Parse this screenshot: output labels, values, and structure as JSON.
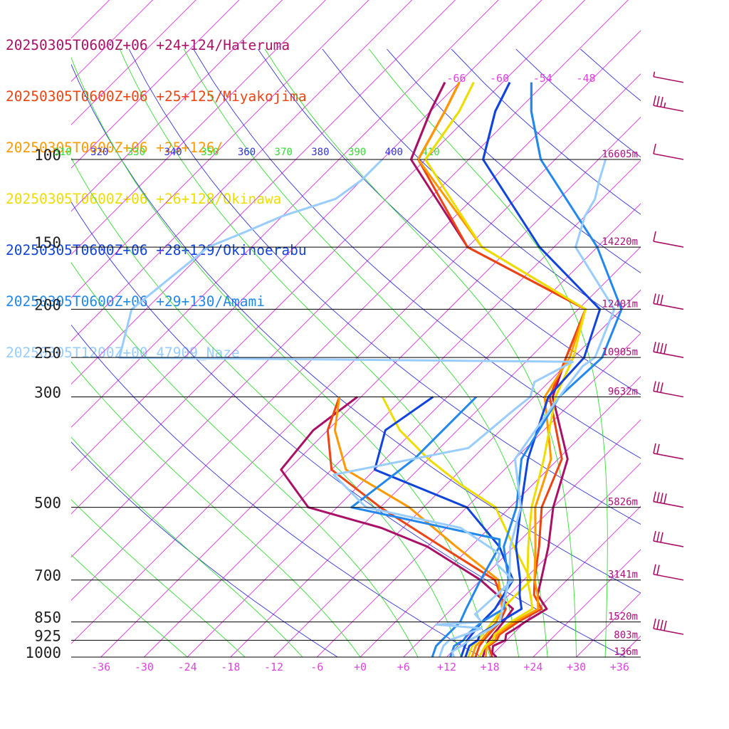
{
  "legend": [
    {
      "text": "20250305T0600Z+06 +24+124/Hateruma",
      "color": "#aa1166"
    },
    {
      "text": "20250305T0600Z+06 +25+125/Miyakojima",
      "color": "#ee4411"
    },
    {
      "text": "20250305T0600Z+06 +25+126/",
      "color": "#ff9900"
    },
    {
      "text": "20250305T0600Z+06 +26+128/Okinawa",
      "color": "#eedd00"
    },
    {
      "text": "20250305T0600Z+06 +28+129/Okinoerabu",
      "color": "#1144dd"
    },
    {
      "text": "20250305T0600Z+06 +29+130/Amami",
      "color": "#2288ee"
    },
    {
      "text": "20250305T1200Z+00 47909_Naze",
      "color": "#99ccff"
    }
  ],
  "colors": {
    "isobar": "#000000",
    "isotherm": "#dd33dd",
    "dry_adiabat": "#3333dd",
    "moist_adiabat": "#33dd33",
    "wind_barb": "#aa1166"
  },
  "chart_data": {
    "type": "skew-t log-p",
    "pressure_levels": [
      {
        "p": 100,
        "label": "100",
        "height": "16605m"
      },
      {
        "p": 150,
        "label": "150",
        "height": "14220m"
      },
      {
        "p": 200,
        "label": "200",
        "height": "12401m"
      },
      {
        "p": 250,
        "label": "250",
        "height": "10905m"
      },
      {
        "p": 300,
        "label": "300",
        "height": "9632m"
      },
      {
        "p": 500,
        "label": "500",
        "height": "5826m"
      },
      {
        "p": 700,
        "label": "700",
        "height": "3141m"
      },
      {
        "p": 850,
        "label": "850",
        "height": "1520m"
      },
      {
        "p": 925,
        "label": "925",
        "height": "803m"
      },
      {
        "p": 1000,
        "label": "1000",
        "height": "136m"
      }
    ],
    "x_ticks": [
      {
        "t": -36,
        "label": "-36"
      },
      {
        "t": -30,
        "label": "-30"
      },
      {
        "t": -24,
        "label": "-24"
      },
      {
        "t": -18,
        "label": "-18"
      },
      {
        "t": -12,
        "label": "-12"
      },
      {
        "t": -6,
        "label": "-6"
      },
      {
        "t": 0,
        "label": "+0"
      },
      {
        "t": 6,
        "label": "+6"
      },
      {
        "t": 12,
        "label": "+12"
      },
      {
        "t": 18,
        "label": "+18"
      },
      {
        "t": 24,
        "label": "+24"
      },
      {
        "t": 30,
        "label": "+30"
      },
      {
        "t": 36,
        "label": "+36"
      }
    ],
    "upper_isotherm_labels": [
      {
        "t": -66,
        "label": "-66"
      },
      {
        "t": -60,
        "label": "-60"
      },
      {
        "t": -54,
        "label": "-54"
      },
      {
        "t": -48,
        "label": "-48"
      }
    ],
    "theta_labels": [
      {
        "label": "310",
        "color": "#33dd33"
      },
      {
        "label": "320",
        "color": "#3333dd"
      },
      {
        "label": "330",
        "color": "#33dd33"
      },
      {
        "label": "340",
        "color": "#3333dd"
      },
      {
        "label": "350",
        "color": "#33dd33"
      },
      {
        "label": "360",
        "color": "#3333dd"
      },
      {
        "label": "370",
        "color": "#33dd33"
      },
      {
        "label": "380",
        "color": "#3333dd"
      },
      {
        "label": "390",
        "color": "#33dd33"
      },
      {
        "label": "400",
        "color": "#3333dd"
      },
      {
        "label": "410",
        "color": "#33dd33"
      }
    ],
    "series": [
      {
        "name": "Hateruma",
        "color": "#aa1166",
        "temp": [
          [
            1000,
            18.9
          ],
          [
            980,
            17.7
          ],
          [
            950,
            16.9
          ],
          [
            925,
            17.8
          ],
          [
            900,
            17.1
          ],
          [
            875,
            17.6
          ],
          [
            850,
            18.0
          ],
          [
            800,
            19.2
          ],
          [
            750,
            16.0
          ],
          [
            700,
            14.4
          ],
          [
            600,
            10.8
          ],
          [
            500,
            6.0
          ],
          [
            400,
            1.3
          ],
          [
            300,
            -9.4
          ],
          [
            250,
            -13.0
          ],
          [
            200,
            -17.0
          ],
          [
            150,
            -42.0
          ],
          [
            100,
            -62.0
          ],
          [
            80,
            -66.0
          ],
          [
            70,
            -68.0
          ]
        ],
        "dew": [
          [
            1000,
            17.0
          ],
          [
            950,
            16.0
          ],
          [
            925,
            15.5
          ],
          [
            850,
            15.0
          ],
          [
            800,
            14.5
          ],
          [
            700,
            6.0
          ],
          [
            600,
            -6.0
          ],
          [
            550,
            -15.0
          ],
          [
            500,
            -28.0
          ],
          [
            420,
            -37.0
          ],
          [
            350,
            -38.0
          ],
          [
            300,
            -36.5
          ]
        ]
      },
      {
        "name": "Miyakojima",
        "color": "#ee4411",
        "temp": [
          [
            1000,
            18.3
          ],
          [
            950,
            16.3
          ],
          [
            925,
            16.6
          ],
          [
            900,
            16.2
          ],
          [
            850,
            17.0
          ],
          [
            800,
            18.5
          ],
          [
            750,
            15.5
          ],
          [
            700,
            13.5
          ],
          [
            600,
            9.5
          ],
          [
            500,
            4.4
          ],
          [
            400,
            0.5
          ],
          [
            300,
            -9.8
          ],
          [
            250,
            -13.0
          ],
          [
            200,
            -17.0
          ],
          [
            150,
            -42.0
          ],
          [
            100,
            -61.0
          ],
          [
            80,
            -64.0
          ],
          [
            70,
            -66.0
          ]
        ],
        "dew": [
          [
            1000,
            16.0
          ],
          [
            950,
            15.0
          ],
          [
            925,
            14.8
          ],
          [
            850,
            14.5
          ],
          [
            800,
            13.5
          ],
          [
            700,
            8.0
          ],
          [
            600,
            -4.0
          ],
          [
            500,
            -18.0
          ],
          [
            420,
            -30.0
          ],
          [
            350,
            -36.0
          ],
          [
            300,
            -39.0
          ]
        ]
      },
      {
        "name": "",
        "color": "#ff9900",
        "temp": [
          [
            1000,
            17.4
          ],
          [
            950,
            16.0
          ],
          [
            925,
            16.4
          ],
          [
            900,
            15.8
          ],
          [
            850,
            16.5
          ],
          [
            800,
            18.0
          ],
          [
            750,
            16.0
          ],
          [
            700,
            13.5
          ],
          [
            600,
            9.0
          ],
          [
            500,
            3.5
          ],
          [
            400,
            -1.0
          ],
          [
            300,
            -10.5
          ],
          [
            250,
            -12.5
          ],
          [
            200,
            -17.0
          ],
          [
            150,
            -40.0
          ],
          [
            100,
            -61.0
          ],
          [
            80,
            -64.0
          ],
          [
            70,
            -66.0
          ]
        ],
        "dew": [
          [
            1000,
            15.5
          ],
          [
            950,
            14.5
          ],
          [
            925,
            14.5
          ],
          [
            850,
            14.0
          ],
          [
            800,
            13.0
          ],
          [
            700,
            8.5
          ],
          [
            600,
            -2.0
          ],
          [
            500,
            -14.0
          ],
          [
            420,
            -28.0
          ],
          [
            350,
            -35.0
          ],
          [
            300,
            -39.0
          ]
        ]
      },
      {
        "name": "Okinawa",
        "color": "#eedd00",
        "temp": [
          [
            1000,
            16.5
          ],
          [
            950,
            15.8
          ],
          [
            925,
            16.0
          ],
          [
            900,
            15.5
          ],
          [
            850,
            16.0
          ],
          [
            800,
            17.2
          ],
          [
            750,
            15.0
          ],
          [
            700,
            12.5
          ],
          [
            600,
            8.0
          ],
          [
            500,
            3.0
          ],
          [
            400,
            -2.0
          ],
          [
            300,
            -9.0
          ],
          [
            250,
            -12.0
          ],
          [
            200,
            -17.0
          ],
          [
            150,
            -40.0
          ],
          [
            100,
            -60.0
          ],
          [
            80,
            -62.0
          ],
          [
            70,
            -64.0
          ]
        ],
        "dew": [
          [
            1000,
            15.0
          ],
          [
            950,
            14.0
          ],
          [
            925,
            14.0
          ],
          [
            850,
            13.5
          ],
          [
            800,
            13.0
          ],
          [
            700,
            13.0
          ],
          [
            600,
            6.0
          ],
          [
            500,
            -2.0
          ],
          [
            450,
            -10.0
          ],
          [
            400,
            -18.0
          ],
          [
            350,
            -26.0
          ],
          [
            300,
            -33.0
          ]
        ]
      },
      {
        "name": "Okinoerabu",
        "color": "#1144dd",
        "temp": [
          [
            1000,
            14.6
          ],
          [
            950,
            13.6
          ],
          [
            925,
            14.0
          ],
          [
            900,
            13.4
          ],
          [
            850,
            14.5
          ],
          [
            800,
            15.7
          ],
          [
            750,
            13.5
          ],
          [
            700,
            11.5
          ],
          [
            600,
            6.3
          ],
          [
            500,
            1.5
          ],
          [
            400,
            -4.2
          ],
          [
            300,
            -10.0
          ],
          [
            250,
            -10.5
          ],
          [
            200,
            -15.0
          ],
          [
            150,
            -32.0
          ],
          [
            100,
            -52.0
          ],
          [
            80,
            -57.0
          ],
          [
            70,
            -59.0
          ]
        ],
        "dew": [
          [
            1000,
            14.0
          ],
          [
            950,
            13.0
          ],
          [
            925,
            12.5
          ],
          [
            850,
            12.0
          ],
          [
            800,
            12.0
          ],
          [
            700,
            10.5
          ],
          [
            600,
            4.0
          ],
          [
            500,
            -6.0
          ],
          [
            420,
            -24.0
          ],
          [
            350,
            -28.0
          ],
          [
            300,
            -26.0
          ]
        ]
      },
      {
        "name": "Amami",
        "color": "#2288ee",
        "temp": [
          [
            1000,
            12.5
          ],
          [
            950,
            11.5
          ],
          [
            925,
            12.0
          ],
          [
            900,
            11.7
          ],
          [
            850,
            12.0
          ],
          [
            800,
            13.2
          ],
          [
            750,
            11.5
          ],
          [
            700,
            9.9
          ],
          [
            600,
            4.6
          ],
          [
            500,
            0.9
          ],
          [
            400,
            -5.1
          ],
          [
            300,
            -8.5
          ],
          [
            250,
            -8.0
          ],
          [
            200,
            -12.0
          ],
          [
            150,
            -24.0
          ],
          [
            100,
            -44.0
          ],
          [
            80,
            -52.0
          ],
          [
            70,
            -56.0
          ]
        ],
        "dew": [
          [
            1000,
            10.0
          ],
          [
            950,
            9.0
          ],
          [
            925,
            9.0
          ],
          [
            850,
            9.0
          ],
          [
            800,
            8.0
          ],
          [
            700,
            6.0
          ],
          [
            600,
            4.0
          ],
          [
            580,
            3.0
          ],
          [
            500,
            -22.0
          ],
          [
            400,
            -20.0
          ],
          [
            300,
            -20.0
          ]
        ]
      },
      {
        "name": "47909_Naze",
        "color": "#99ccff",
        "temp": [
          [
            1000,
            13.0
          ],
          [
            975,
            12.0
          ],
          [
            950,
            12.5
          ],
          [
            925,
            12.8
          ],
          [
            900,
            13.5
          ],
          [
            875,
            14.2
          ],
          [
            850,
            14.5
          ],
          [
            800,
            13.0
          ],
          [
            700,
            10.0
          ],
          [
            600,
            5.5
          ],
          [
            500,
            1.5
          ],
          [
            400,
            -6.0
          ],
          [
            300,
            -8.5
          ],
          [
            260,
            -9.5
          ],
          [
            250,
            -9.0
          ],
          [
            200,
            -13.0
          ],
          [
            150,
            -27.0
          ],
          [
            130,
            -30.0
          ],
          [
            120,
            -31.0
          ],
          [
            110,
            -33.0
          ],
          [
            100,
            -35.0
          ]
        ],
        "dew": [
          [
            1000,
            11.0
          ],
          [
            950,
            10.0
          ],
          [
            925,
            10.0
          ],
          [
            900,
            11.5
          ],
          [
            875,
            12.8
          ],
          [
            860,
            6.0
          ],
          [
            850,
            12.0
          ],
          [
            820,
            10.0
          ],
          [
            700,
            10.5
          ],
          [
            650,
            6.0
          ],
          [
            620,
            5.0
          ],
          [
            550,
            -4.0
          ],
          [
            500,
            -20.0
          ],
          [
            430,
            -29.0
          ],
          [
            380,
            -14.0
          ],
          [
            320,
            -13.0
          ],
          [
            300,
            -12.5
          ],
          [
            280,
            -14.0
          ],
          [
            255,
            -11.5
          ],
          [
            250,
            -75.0
          ],
          [
            200,
            -80.0
          ],
          [
            150,
            -78.0
          ],
          [
            140,
            -75.0
          ],
          [
            130,
            -72.0
          ],
          [
            120,
            -67.0
          ],
          [
            110,
            -66.0
          ],
          [
            100,
            -66.0
          ]
        ]
      }
    ],
    "wind_barbs": [
      {
        "p": 70,
        "knots": 5
      },
      {
        "p": 80,
        "knots": 35
      },
      {
        "p": 100,
        "knots": 10
      },
      {
        "p": 150,
        "knots": 10
      },
      {
        "p": 200,
        "knots": 30
      },
      {
        "p": 250,
        "knots": 40
      },
      {
        "p": 300,
        "knots": 30
      },
      {
        "p": 400,
        "knots": 20
      },
      {
        "p": 500,
        "knots": 40
      },
      {
        "p": 600,
        "knots": 30
      },
      {
        "p": 700,
        "knots": 20
      },
      {
        "p": 900,
        "knots": 40
      }
    ]
  }
}
